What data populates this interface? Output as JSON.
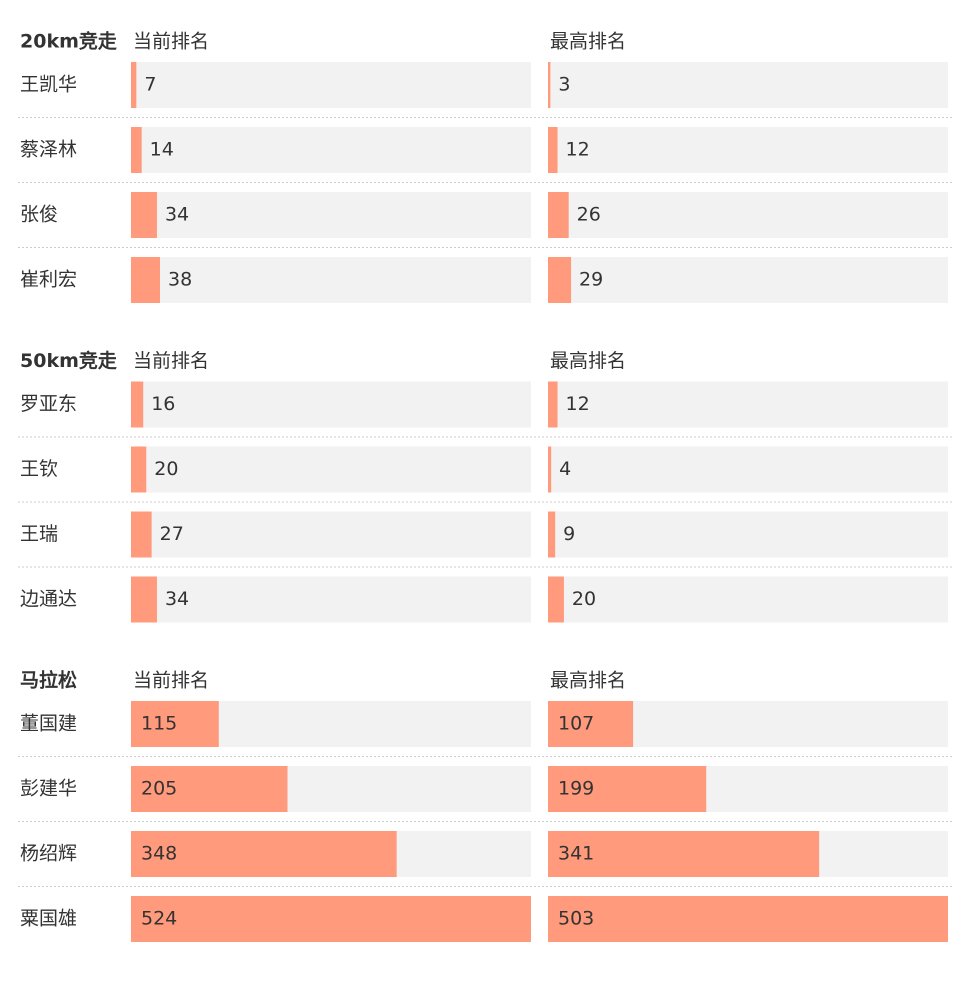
{
  "chart_data": [
    {
      "type": "bar",
      "title": "20km竞走",
      "categories": [
        "王凯华",
        "蔡泽林",
        "张俊",
        "崔利宏"
      ],
      "series": [
        {
          "name": "当前排名",
          "color": "#ff9a7c",
          "values": [
            7,
            14,
            34,
            38
          ]
        },
        {
          "name": "最高排名",
          "color": "#ff9a7c",
          "values": [
            3,
            12,
            26,
            29
          ]
        }
      ]
    },
    {
      "type": "bar",
      "title": "50km竞走",
      "categories": [
        "罗亚东",
        "王钦",
        "王瑞",
        "边通达"
      ],
      "series": [
        {
          "name": "当前排名",
          "color": "#ff9a7c",
          "values": [
            16,
            20,
            27,
            34
          ]
        },
        {
          "name": "最高排名",
          "color": "#ff9a7c",
          "values": [
            12,
            4,
            9,
            20
          ]
        }
      ]
    },
    {
      "type": "bar",
      "title": "马拉松",
      "categories": [
        "董国建",
        "彭建华",
        "杨绍辉",
        "粟国雄"
      ],
      "series": [
        {
          "name": "当前排名",
          "color": "#ff9a7c",
          "values": [
            115,
            205,
            348,
            524
          ]
        },
        {
          "name": "最高排名",
          "color": "#ff9a7c",
          "values": [
            107,
            199,
            341,
            503
          ]
        }
      ]
    }
  ]
}
